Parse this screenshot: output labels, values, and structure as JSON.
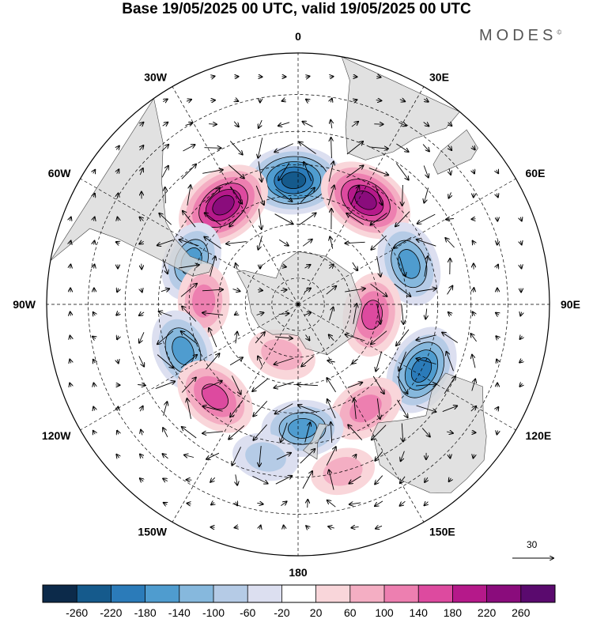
{
  "title": "Base 19/05/2025 00 UTC, valid 19/05/2025 00 UTC",
  "brand": "MODES",
  "brand_mark": "©",
  "longitude_labels": [
    {
      "text": "0",
      "lon": 0
    },
    {
      "text": "30E",
      "lon": 30
    },
    {
      "text": "60E",
      "lon": 60
    },
    {
      "text": "90E",
      "lon": 90
    },
    {
      "text": "120E",
      "lon": 120
    },
    {
      "text": "150E",
      "lon": 150
    },
    {
      "text": "180",
      "lon": 180
    },
    {
      "text": "150W",
      "lon": -150
    },
    {
      "text": "120W",
      "lon": -120
    },
    {
      "text": "90W",
      "lon": -90
    },
    {
      "text": "60W",
      "lon": -60
    },
    {
      "text": "30W",
      "lon": -30
    }
  ],
  "reference_vector": {
    "label": "30"
  },
  "colorbar": {
    "ticks": [
      "-260",
      "-220",
      "-180",
      "-140",
      "-100",
      "-60",
      "-20",
      "20",
      "60",
      "100",
      "140",
      "180",
      "220",
      "260"
    ],
    "colors": [
      "#0c2a4a",
      "#155a8c",
      "#2b7bb9",
      "#4f9ccf",
      "#86b8dd",
      "#b5cbe6",
      "#dcdff0",
      "#ffffff",
      "#f9d6da",
      "#f4aec3",
      "#ed7fb0",
      "#dd4a9f",
      "#b5198a",
      "#8a0c7c",
      "#5a0a6e"
    ]
  },
  "colors": {
    "land": "#d9d9d9",
    "negative": "#2b7bb9",
    "positive": "#c4168b",
    "grid": "#000000"
  },
  "anomaly_features": [
    {
      "lon": -2,
      "lat": -45,
      "value": -240
    },
    {
      "lon": 33,
      "lat": -45,
      "value": 230
    },
    {
      "lon": -37,
      "lat": -45,
      "value": 240
    },
    {
      "lon": 70,
      "lat": -47,
      "value": -170
    },
    {
      "lon": -68,
      "lat": -48,
      "value": -140
    },
    {
      "lon": -88,
      "lat": -55,
      "value": 110
    },
    {
      "lon": 98,
      "lat": -62,
      "value": 160
    },
    {
      "lon": -112,
      "lat": -45,
      "value": -160
    },
    {
      "lon": 118,
      "lat": -40,
      "value": -200
    },
    {
      "lon": -138,
      "lat": -45,
      "value": 170
    },
    {
      "lon": 147,
      "lat": -45,
      "value": 130
    },
    {
      "lon": 178,
      "lat": -45,
      "value": -150
    },
    {
      "lon": -162,
      "lat": -70,
      "value": 80
    },
    {
      "lon": 165,
      "lat": -30,
      "value": 60
    },
    {
      "lon": -168,
      "lat": -35,
      "value": -70
    }
  ]
}
